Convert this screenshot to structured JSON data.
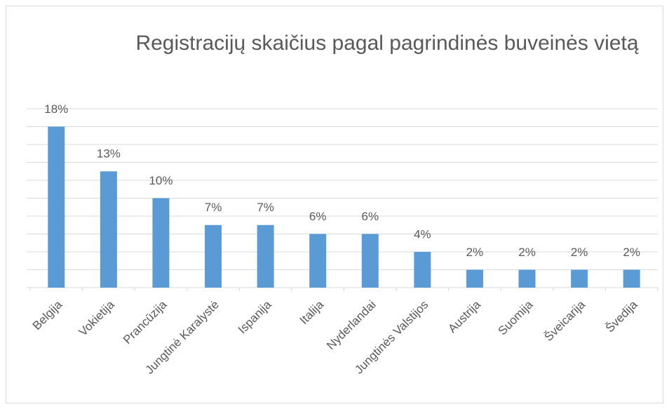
{
  "chart_data": {
    "type": "bar",
    "title": "Registracijų skaičius pagal pagrindinės buveinės vietą",
    "categories": [
      "Belgija",
      "Vokietija",
      "Prancūzija",
      "Jungtinė Karalystė",
      "Ispanija",
      "Italija",
      "Nyderlandai",
      "Jungtinės Valstijos",
      "Austrija",
      "Suomija",
      "Šveicarija",
      "Švedija"
    ],
    "values": [
      18,
      13,
      10,
      7,
      7,
      6,
      6,
      4,
      2,
      2,
      2,
      2
    ],
    "value_labels": [
      "18%",
      "13%",
      "10%",
      "7%",
      "7%",
      "6%",
      "6%",
      "4%",
      "2%",
      "2%",
      "2%",
      "2%"
    ],
    "color": "#5b9bd5",
    "ylim": [
      0,
      20
    ],
    "yticks": [
      0,
      2,
      4,
      6,
      8,
      10,
      12,
      14,
      16,
      18,
      20
    ],
    "grid": true
  }
}
